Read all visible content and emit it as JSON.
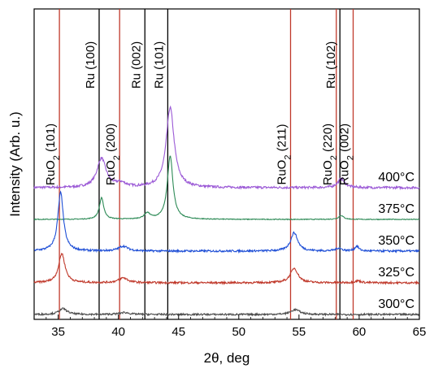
{
  "chart_data": {
    "type": "line",
    "xlabel": "2θ, deg",
    "ylabel": "Intensity (Arb. u.)",
    "xlim": [
      33,
      65
    ],
    "x_ticks": [
      "35",
      "40",
      "45",
      "50",
      "55",
      "60",
      "65"
    ],
    "reference_lines": [
      {
        "position": 35.1,
        "label": "RuO2 (101)",
        "label_main": "RuO",
        "label_sub": "2",
        "label_hkl": " (101)",
        "color": "#c0392b"
      },
      {
        "position": 38.4,
        "label": "Ru (100)",
        "color": "#000000"
      },
      {
        "position": 40.1,
        "label": "RuO2 (200)",
        "label_main": "RuO",
        "label_sub": "2",
        "label_hkl": " (200)",
        "color": "#c0392b"
      },
      {
        "position": 42.2,
        "label": "Ru (002)",
        "color": "#000000"
      },
      {
        "position": 44.1,
        "label": "Ru (101)",
        "color": "#000000"
      },
      {
        "position": 54.3,
        "label": "RuO2 (211)",
        "label_main": "RuO",
        "label_sub": "2",
        "label_hkl": " (211)",
        "color": "#c0392b"
      },
      {
        "position": 58.1,
        "label": "RuO2 (220)",
        "label_main": "RuO",
        "label_sub": "2",
        "label_hkl": " (220)",
        "color": "#c0392b"
      },
      {
        "position": 58.4,
        "label": "Ru (102)",
        "color": "#000000"
      },
      {
        "position": 59.5,
        "label": "RuO2 (002)",
        "label_main": "RuO",
        "label_sub": "2",
        "label_hkl": " (002)",
        "color": "#c0392b"
      }
    ],
    "series": [
      {
        "name": "400°C",
        "color": "#9b59d6",
        "baseline": 1.0,
        "noise": 0.012,
        "peaks": [
          {
            "x": 38.6,
            "height": 0.3,
            "width": 0.45
          },
          {
            "x": 40.2,
            "height": 0.04,
            "width": 0.5
          },
          {
            "x": 44.3,
            "height": 0.82,
            "width": 0.4
          },
          {
            "x": 58.5,
            "height": 0.09,
            "width": 0.35
          }
        ]
      },
      {
        "name": "375°C",
        "color": "#2e8b57",
        "baseline": 0.0,
        "noise": 0.004,
        "peaks": [
          {
            "x": 38.6,
            "height": 0.22,
            "width": 0.22
          },
          {
            "x": 42.4,
            "height": 0.06,
            "width": 0.3
          },
          {
            "x": 44.3,
            "height": 0.65,
            "width": 0.28
          },
          {
            "x": 58.5,
            "height": 0.04,
            "width": 0.25
          }
        ]
      },
      {
        "name": "350°C",
        "color": "#1f4fd6",
        "baseline": -1.0,
        "noise": 0.01,
        "peaks": [
          {
            "x": 35.2,
            "height": 0.6,
            "width": 0.28
          },
          {
            "x": 40.4,
            "height": 0.05,
            "width": 0.45
          },
          {
            "x": 54.6,
            "height": 0.19,
            "width": 0.35
          },
          {
            "x": 58.3,
            "height": 0.03,
            "width": 0.3
          },
          {
            "x": 59.8,
            "height": 0.05,
            "width": 0.2
          }
        ]
      },
      {
        "name": "325°C",
        "color": "#c0392b",
        "baseline": -2.0,
        "noise": 0.01,
        "peaks": [
          {
            "x": 35.3,
            "height": 0.3,
            "width": 0.32
          },
          {
            "x": 40.4,
            "height": 0.05,
            "width": 0.45
          },
          {
            "x": 54.6,
            "height": 0.15,
            "width": 0.38
          },
          {
            "x": 59.9,
            "height": 0.02,
            "width": 0.3
          }
        ]
      },
      {
        "name": "300°C",
        "color": "#4a4a4a",
        "baseline": -3.0,
        "noise": 0.009,
        "peaks": [
          {
            "x": 35.4,
            "height": 0.06,
            "width": 0.4
          },
          {
            "x": 40.5,
            "height": 0.02,
            "width": 0.5
          },
          {
            "x": 54.7,
            "height": 0.05,
            "width": 0.45
          }
        ]
      }
    ]
  }
}
